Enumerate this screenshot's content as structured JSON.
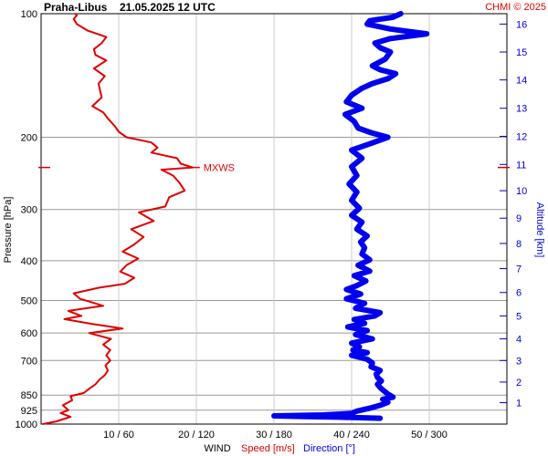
{
  "header": {
    "station": "Praha-Libus",
    "datetime": "21.05.2025 12 UTC",
    "credit": "CHMI © 2025"
  },
  "colors": {
    "speed": "#e00000",
    "direction": "#0000ee",
    "grid": "#999999",
    "axis": "#000000",
    "altitude_axis": "#0000cc"
  },
  "chart_data": {
    "type": "line",
    "y_axis": {
      "label": "Pressure [hPa]",
      "scale": "log",
      "range": [
        1000,
        100
      ],
      "ticks": [
        100,
        200,
        300,
        400,
        500,
        600,
        700,
        850,
        925,
        1000
      ]
    },
    "x_axis": {
      "prefix": "WIND",
      "speed_label": "Speed [m/s]",
      "direction_label": "Direction [°]",
      "speed_range": [
        0,
        60
      ],
      "direction_range": [
        0,
        360
      ],
      "tick_labels": [
        "10 / 60",
        "20 / 120",
        "30 / 180",
        "40 / 240",
        "50 / 300"
      ]
    },
    "altitude_axis": {
      "label": "Altitude [km]",
      "ticks": [
        {
          "km": 1,
          "p": 887
        },
        {
          "km": 2,
          "p": 790
        },
        {
          "km": 3,
          "p": 700
        },
        {
          "km": 4,
          "p": 620
        },
        {
          "km": 5,
          "p": 545
        },
        {
          "km": 6,
          "p": 478
        },
        {
          "km": 7,
          "p": 418
        },
        {
          "km": 8,
          "p": 363
        },
        {
          "km": 9,
          "p": 315
        },
        {
          "km": 10,
          "p": 270
        },
        {
          "km": 11,
          "p": 233
        },
        {
          "km": 12,
          "p": 199
        },
        {
          "km": 13,
          "p": 170
        },
        {
          "km": 14,
          "p": 145
        },
        {
          "km": 15,
          "p": 124
        },
        {
          "km": 16,
          "p": 106
        }
      ]
    },
    "annotation": {
      "text": "MXWS",
      "p": 237,
      "speed": 19.5
    },
    "series": [
      {
        "name": "Speed [m/s]",
        "points": [
          [
            1000,
            0.2
          ],
          [
            985,
            2.0
          ],
          [
            960,
            3.8
          ],
          [
            940,
            2.5
          ],
          [
            925,
            3.5
          ],
          [
            900,
            2.8
          ],
          [
            875,
            4.0
          ],
          [
            855,
            3.8
          ],
          [
            840,
            5.5
          ],
          [
            820,
            6.2
          ],
          [
            800,
            7.0
          ],
          [
            780,
            7.5
          ],
          [
            760,
            8.2
          ],
          [
            740,
            8.6
          ],
          [
            720,
            8.3
          ],
          [
            700,
            8.9
          ],
          [
            680,
            8.4
          ],
          [
            660,
            8.9
          ],
          [
            640,
            8.0
          ],
          [
            620,
            9.0
          ],
          [
            600,
            6.2
          ],
          [
            585,
            10.5
          ],
          [
            570,
            6.5
          ],
          [
            555,
            3.0
          ],
          [
            545,
            5.2
          ],
          [
            530,
            3.5
          ],
          [
            515,
            8.0
          ],
          [
            495,
            5.0
          ],
          [
            480,
            4.2
          ],
          [
            465,
            7.5
          ],
          [
            455,
            10.8
          ],
          [
            440,
            12.0
          ],
          [
            425,
            10.2
          ],
          [
            410,
            11.0
          ],
          [
            395,
            12.5
          ],
          [
            380,
            10.5
          ],
          [
            365,
            12.0
          ],
          [
            350,
            13.2
          ],
          [
            335,
            11.6
          ],
          [
            320,
            14.5
          ],
          [
            305,
            12.6
          ],
          [
            295,
            16.0
          ],
          [
            280,
            16.5
          ],
          [
            270,
            18.5
          ],
          [
            258,
            17.8
          ],
          [
            248,
            17.0
          ],
          [
            240,
            15.5
          ],
          [
            237,
            19.5
          ],
          [
            232,
            18.0
          ],
          [
            225,
            17.5
          ],
          [
            218,
            14.2
          ],
          [
            212,
            15.0
          ],
          [
            206,
            14.2
          ],
          [
            200,
            11.0
          ],
          [
            194,
            10.0
          ],
          [
            188,
            9.5
          ],
          [
            180,
            8.6
          ],
          [
            174,
            8.0
          ],
          [
            168,
            6.6
          ],
          [
            160,
            7.8
          ],
          [
            154,
            7.6
          ],
          [
            148,
            7.4
          ],
          [
            142,
            8.2
          ],
          [
            136,
            6.8
          ],
          [
            130,
            8.4
          ],
          [
            126,
            7.0
          ],
          [
            122,
            6.8
          ],
          [
            118,
            7.8
          ],
          [
            114,
            8.4
          ],
          [
            110,
            6.0
          ],
          [
            106,
            4.6
          ],
          [
            103,
            4.2
          ],
          [
            101,
            4.6
          ],
          [
            100,
            4.4
          ]
        ]
      },
      {
        "name": "Direction [°]",
        "points": [
          [
            968,
            262
          ],
          [
            962,
            230
          ],
          [
            958,
            200
          ],
          [
            955,
            180
          ],
          [
            950,
            218
          ],
          [
            942,
            240
          ],
          [
            930,
            244
          ],
          [
            915,
            254
          ],
          [
            900,
            262
          ],
          [
            885,
            268
          ],
          [
            870,
            264
          ],
          [
            860,
            272
          ],
          [
            845,
            268
          ],
          [
            830,
            265
          ],
          [
            815,
            262
          ],
          [
            800,
            260
          ],
          [
            785,
            263
          ],
          [
            770,
            260
          ],
          [
            755,
            259
          ],
          [
            740,
            262
          ],
          [
            725,
            255
          ],
          [
            710,
            256
          ],
          [
            695,
            252
          ],
          [
            680,
            240
          ],
          [
            670,
            252
          ],
          [
            660,
            241
          ],
          [
            648,
            246
          ],
          [
            635,
            240
          ],
          [
            620,
            256
          ],
          [
            605,
            243
          ],
          [
            592,
            252
          ],
          [
            580,
            237
          ],
          [
            568,
            250
          ],
          [
            556,
            242
          ],
          [
            545,
            258
          ],
          [
            535,
            262
          ],
          [
            522,
            243
          ],
          [
            508,
            250
          ],
          [
            495,
            236
          ],
          [
            482,
            247
          ],
          [
            470,
            236
          ],
          [
            460,
            244
          ],
          [
            448,
            251
          ],
          [
            435,
            242
          ],
          [
            424,
            254
          ],
          [
            410,
            245
          ],
          [
            398,
            254
          ],
          [
            385,
            248
          ],
          [
            372,
            250
          ],
          [
            360,
            247
          ],
          [
            348,
            252
          ],
          [
            335,
            244
          ],
          [
            322,
            248
          ],
          [
            310,
            240
          ],
          [
            298,
            246
          ],
          [
            285,
            240
          ],
          [
            272,
            244
          ],
          [
            260,
            238
          ],
          [
            248,
            244
          ],
          [
            236,
            240
          ],
          [
            225,
            248
          ],
          [
            215,
            240
          ],
          [
            207,
            255
          ],
          [
            200,
            268
          ],
          [
            195,
            255
          ],
          [
            190,
            245
          ],
          [
            183,
            242
          ],
          [
            176,
            235
          ],
          [
            170,
            248
          ],
          [
            164,
            236
          ],
          [
            158,
            240
          ],
          [
            152,
            248
          ],
          [
            148,
            256
          ],
          [
            144,
            268
          ],
          [
            140,
            274
          ],
          [
            137,
            262
          ],
          [
            134,
            256
          ],
          [
            129,
            266
          ],
          [
            124,
            270
          ],
          [
            121,
            262
          ],
          [
            118,
            258
          ],
          [
            115,
            270
          ],
          [
            112,
            298
          ],
          [
            109,
            270
          ],
          [
            106,
            252
          ],
          [
            104,
            254
          ],
          [
            102,
            272
          ],
          [
            100,
            278
          ]
        ]
      }
    ]
  }
}
